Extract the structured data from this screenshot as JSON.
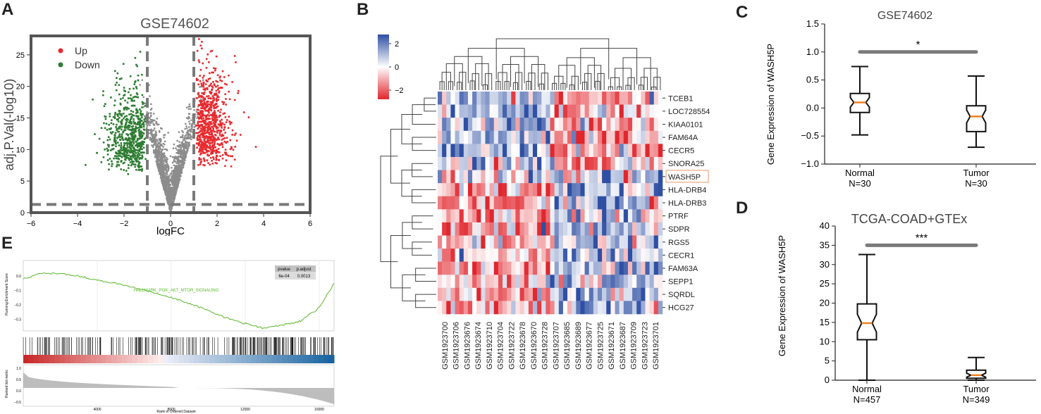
{
  "panels": {
    "A": "A",
    "B": "B",
    "C": "C",
    "D": "D",
    "E": "E"
  },
  "colors": {
    "up": "#e8292e",
    "down": "#2e7d32",
    "ns": "#8c8c8c",
    "heat_high": "#2e4fa3",
    "heat_low": "#e1262d",
    "box_median": "#f07f22",
    "gsea_line": "#59b82a"
  },
  "chart_data": [
    {
      "id": "A",
      "type": "scatter",
      "title": "GSE74602",
      "xlabel": "logFC",
      "ylabel": "adj.P.Val(-log10)",
      "xlim": [
        -6,
        6
      ],
      "ylim": [
        0,
        28
      ],
      "xticks": [
        "−6",
        "−4",
        "−2",
        "0",
        "2",
        "4",
        "6"
      ],
      "yticks": [
        "0",
        "5",
        "10",
        "15",
        "20",
        "25"
      ],
      "thresholds": {
        "logFC": [
          -1,
          1
        ],
        "neglog10p": 1.3
      },
      "legend": [
        "Up",
        "Down"
      ],
      "legend_position": "top-left",
      "series": [
        {
          "name": "Up",
          "color": "#e8292e"
        },
        {
          "name": "Down",
          "color": "#2e7d32"
        }
      ]
    },
    {
      "id": "B",
      "type": "heatmap",
      "colorbar_ticks": [
        "2",
        "0",
        "−2"
      ],
      "colorbar_range": [
        -2.5,
        2.5
      ],
      "genes": [
        "TCEB1",
        "LOC728554",
        "KIAA0101",
        "FAM64A",
        "CECR5",
        "SNORA25",
        "WASH5P",
        "HLA-DRB4",
        "HLA-DRB3",
        "PTRF",
        "SDPR",
        "RGS5",
        "CECR1",
        "FAM63A",
        "SEPP1",
        "SQRDL",
        "HCG27"
      ],
      "highlight_gene": "WASH5P",
      "samples": [
        "GSM1923700",
        "GSM1923706",
        "GSM1923676",
        "GSM1923674",
        "GSM1923710",
        "GSM1923704",
        "GSM1923722",
        "GSM1923678",
        "GSM1923670",
        "GSM1923728",
        "GSM1923707",
        "GSM1923685",
        "GSM1923689",
        "GSM1923677",
        "GSM1923725",
        "GSM1923671",
        "GSM1923687",
        "GSM1923709",
        "GSM1923723",
        "GSM1923701"
      ]
    },
    {
      "id": "C",
      "type": "box",
      "title": "GSE74602",
      "ylabel": "Gene Expression of WASH5P",
      "ylim": [
        -1.0,
        1.5
      ],
      "yticks": [
        "−1.0",
        "−0.5",
        "0.0",
        "0.5",
        "1.0",
        "1.5"
      ],
      "categories": [
        "Normal",
        "Tumor"
      ],
      "counts": [
        "N=30",
        "N=30"
      ],
      "boxes": [
        {
          "name": "Normal",
          "min": -0.48,
          "q1": -0.08,
          "median": 0.1,
          "q3": 0.26,
          "max": 0.74
        },
        {
          "name": "Tumor",
          "min": -0.7,
          "q1": -0.42,
          "median": -0.15,
          "q3": 0.04,
          "max": 0.57
        }
      ],
      "significance": "*",
      "sig_y": 1.0
    },
    {
      "id": "D",
      "type": "box",
      "title": "TCGA-COAD+GTEx",
      "ylabel": "Gene Expression of WASH5P",
      "ylim": [
        0,
        40
      ],
      "yticks": [
        "0",
        "5",
        "10",
        "15",
        "20",
        "25",
        "30",
        "35",
        "40"
      ],
      "categories": [
        "Normal",
        "Tumor"
      ],
      "counts": [
        "N=457",
        "N=349"
      ],
      "boxes": [
        {
          "name": "Normal",
          "min": 0,
          "q1": 10.5,
          "median": 14.8,
          "q3": 19.8,
          "max": 32.6
        },
        {
          "name": "Tumor",
          "min": 0,
          "q1": 0.5,
          "median": 1.3,
          "q3": 2.6,
          "max": 5.9
        }
      ],
      "significance": "***",
      "sig_y": 35
    },
    {
      "id": "E",
      "type": "line",
      "ylabel_top": "Running Enrichment Score",
      "ylabel_bottom": "Ranked list metric",
      "xlabel": "Rank in Ordered Dataset",
      "series_label": "HALLMARK_PI3K_AKT_MTOR_SIGNALING",
      "table": {
        "headers": [
          "pvalue",
          "p.adjust"
        ],
        "values": [
          "6e-04",
          "0.0013"
        ]
      },
      "xticks": [
        "4000",
        "8000",
        "12000",
        "16000"
      ],
      "yticks_top": [
        "0.0",
        "−0.1",
        "−0.2",
        "−0.3"
      ],
      "yticks_bottom": [
        "1.0",
        "0.5",
        "0.0",
        "−0.5"
      ],
      "x": [
        0,
        1000,
        2000,
        3000,
        4000,
        5000,
        6000,
        7000,
        8000,
        9000,
        10000,
        11000,
        12000,
        13000,
        14000,
        15000,
        16000,
        16800
      ],
      "y": [
        -0.02,
        0.02,
        0.015,
        0.0,
        -0.03,
        -0.05,
        -0.08,
        -0.11,
        -0.15,
        -0.19,
        -0.24,
        -0.29,
        -0.33,
        -0.36,
        -0.34,
        -0.31,
        -0.22,
        -0.05
      ]
    }
  ]
}
